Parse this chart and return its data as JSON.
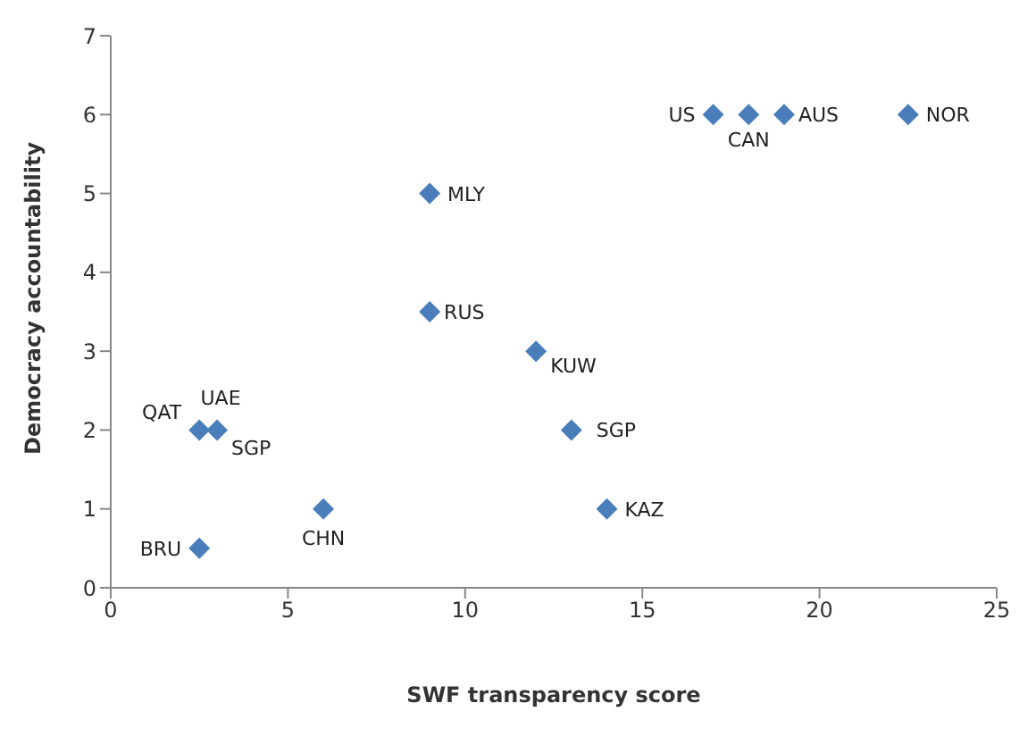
{
  "chart_data": {
    "type": "scatter",
    "xlabel": "SWF transparency score",
    "ylabel": "Democracy accountability",
    "x": [
      17,
      18,
      19,
      22.5,
      9,
      9,
      12,
      13,
      14,
      2.5,
      3,
      6,
      2.5
    ],
    "series": [
      {
        "color": "#4a7ebb",
        "values": [
          6,
          6,
          6,
          6,
          5,
          3.5,
          3,
          2,
          1,
          2,
          2,
          1,
          0.5
        ]
      }
    ],
    "xlim": [
      0,
      25
    ],
    "xticks": [
      0,
      5,
      10,
      15,
      20,
      25
    ],
    "ylim": [
      0,
      7
    ],
    "yticks": [
      0,
      1,
      2,
      3,
      4,
      5,
      6,
      7
    ],
    "grid": false,
    "legend": false,
    "marker": "diamond",
    "annotations": [
      {
        "text": "US",
        "x": 17,
        "y": 6
      },
      {
        "text": "CAN",
        "x": 18,
        "y": 6
      },
      {
        "text": "AUS",
        "x": 19,
        "y": 6
      },
      {
        "text": "NOR",
        "x": 22.5,
        "y": 6
      },
      {
        "text": "MLY",
        "x": 9,
        "y": 5
      },
      {
        "text": "RUS",
        "x": 9,
        "y": 3.5
      },
      {
        "text": "KUW",
        "x": 12,
        "y": 3
      },
      {
        "text": "SGP",
        "x": 13,
        "y": 2
      },
      {
        "text": "KAZ",
        "x": 14,
        "y": 1
      },
      {
        "text": "QAT",
        "x": 2.5,
        "y": 2
      },
      {
        "text": "UAE",
        "x": 3,
        "y": 2
      },
      {
        "text": "SGP",
        "x": 3,
        "y": 2
      },
      {
        "text": "CHN",
        "x": 6,
        "y": 1
      },
      {
        "text": "BRU",
        "x": 2.5,
        "y": 0.5
      }
    ]
  }
}
